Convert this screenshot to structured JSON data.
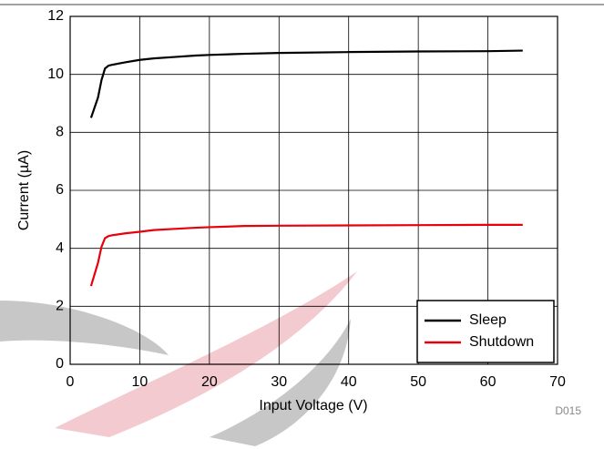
{
  "chart_data": {
    "type": "line",
    "x_label": "Input Voltage (V)",
    "y_label": "Current (µA)",
    "footnote": "D015",
    "x": [
      3,
      3.5,
      4,
      4.5,
      5,
      5.5,
      6,
      8,
      10,
      12,
      15,
      18,
      20,
      25,
      30,
      40,
      50,
      60,
      65
    ],
    "series": [
      {
        "name": "Sleep",
        "color": "#000000",
        "values": [
          8.5,
          8.85,
          9.2,
          9.8,
          10.2,
          10.3,
          10.33,
          10.42,
          10.5,
          10.55,
          10.6,
          10.65,
          10.67,
          10.71,
          10.74,
          10.77,
          10.79,
          10.8,
          10.82
        ]
      },
      {
        "name": "Shutdown",
        "color": "#e8000b",
        "values": [
          2.7,
          3.1,
          3.5,
          4.05,
          4.35,
          4.42,
          4.45,
          4.52,
          4.57,
          4.63,
          4.67,
          4.71,
          4.73,
          4.77,
          4.78,
          4.79,
          4.8,
          4.81,
          4.81
        ]
      }
    ],
    "xlim": [
      0,
      70
    ],
    "xticks": [
      0,
      10,
      20,
      30,
      40,
      50,
      60,
      70
    ],
    "ylim": [
      0,
      12
    ],
    "yticks": [
      0,
      2,
      4,
      6,
      8,
      10,
      12
    ],
    "grid": true,
    "legend": "lower right"
  }
}
